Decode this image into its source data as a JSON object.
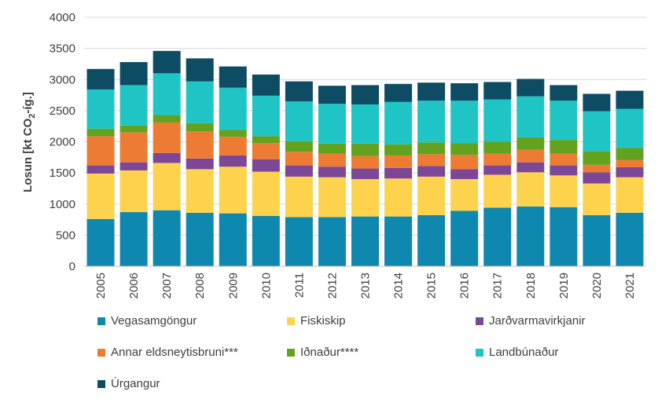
{
  "chart_data": {
    "type": "bar",
    "stacked": true,
    "ylabel_main": "Losun [kt CO",
    "ylabel_sub": "2",
    "ylabel_tail": "-íg.]",
    "ylim": [
      0,
      4000
    ],
    "yticks": [
      0,
      500,
      1000,
      1500,
      2000,
      2500,
      3000,
      3500,
      4000
    ],
    "gridlines": true,
    "legend_position": "bottom",
    "categories": [
      "2005",
      "2006",
      "2007",
      "2008",
      "2009",
      "2010",
      "2011",
      "2012",
      "2013",
      "2014",
      "2015",
      "2016",
      "2017",
      "2018",
      "2019",
      "2020",
      "2021"
    ],
    "series": [
      {
        "name": "Vegasamgöngur",
        "color": "#0f88b0",
        "values": [
          760,
          870,
          900,
          860,
          850,
          810,
          790,
          790,
          800,
          800,
          820,
          890,
          940,
          960,
          950,
          820,
          860
        ]
      },
      {
        "name": "Fiskiskip",
        "color": "#fdd24d",
        "values": [
          730,
          670,
          760,
          700,
          750,
          710,
          650,
          640,
          600,
          610,
          620,
          510,
          530,
          550,
          510,
          510,
          570
        ]
      },
      {
        "name": "Jarðvarmavirkjanir",
        "color": "#7b4796",
        "values": [
          130,
          130,
          160,
          170,
          180,
          200,
          180,
          170,
          170,
          170,
          170,
          160,
          150,
          160,
          160,
          180,
          160
        ]
      },
      {
        "name": "Annar eldsneytisbruni***",
        "color": "#ee7b33",
        "values": [
          470,
          480,
          490,
          440,
          300,
          260,
          220,
          210,
          200,
          200,
          190,
          230,
          190,
          200,
          190,
          120,
          120
        ]
      },
      {
        "name": "Iðnaður****",
        "color": "#62a21e",
        "values": [
          120,
          110,
          120,
          130,
          110,
          110,
          170,
          160,
          200,
          180,
          190,
          190,
          190,
          200,
          220,
          220,
          190
        ]
      },
      {
        "name": "Landbúnaður",
        "color": "#1fc5c4",
        "values": [
          630,
          650,
          670,
          670,
          680,
          650,
          640,
          640,
          630,
          680,
          670,
          680,
          680,
          660,
          630,
          640,
          630
        ]
      },
      {
        "name": "Úrgangur",
        "color": "#0d4c63",
        "values": [
          330,
          370,
          360,
          370,
          340,
          340,
          320,
          290,
          310,
          290,
          290,
          280,
          280,
          280,
          250,
          280,
          290
        ]
      }
    ]
  }
}
